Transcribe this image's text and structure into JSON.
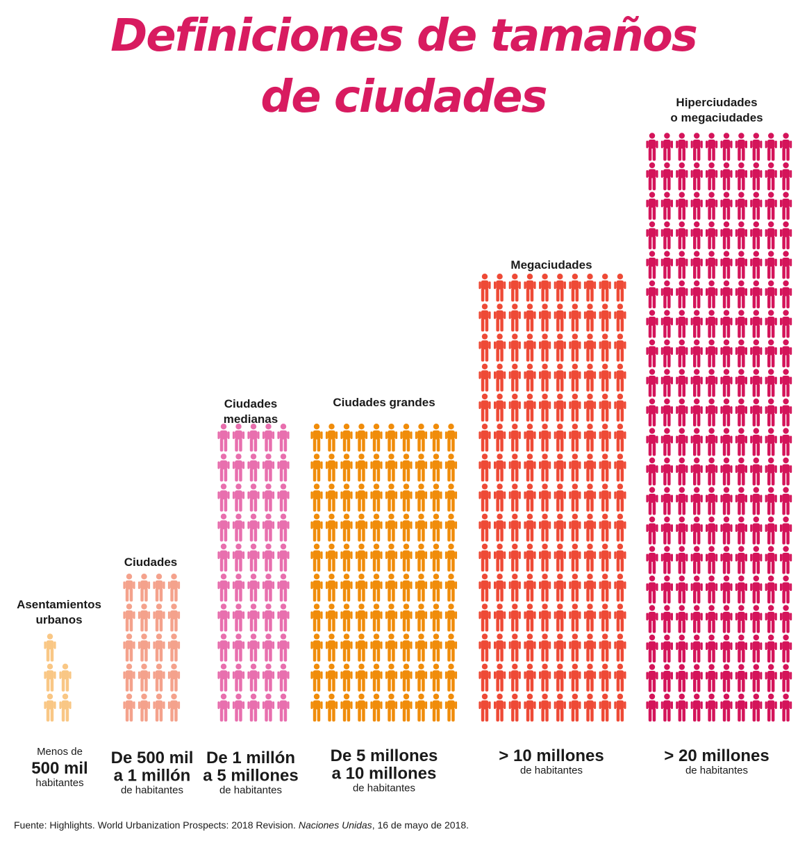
{
  "title": {
    "line1": "Definiciones de tamaños",
    "line2": "de ciudades"
  },
  "chart_data": {
    "type": "pictogram",
    "title": "Definiciones de tamaños de ciudades",
    "categories": [
      {
        "label": [
          "Asentamientos",
          "urbanos"
        ],
        "range": [
          "Menos de",
          "500 mil",
          "habitantes"
        ],
        "icons": 5,
        "color": "#f9c785"
      },
      {
        "label": [
          "Ciudades"
        ],
        "range": [
          "De 500 mil",
          "a 1 millón",
          "de habitantes"
        ],
        "icons": 20,
        "color": "#f4a28c"
      },
      {
        "label": [
          "Ciudades",
          "medianas"
        ],
        "range": [
          "De 1 millón",
          "a 5 millones",
          "de habitantes"
        ],
        "icons": 50,
        "color": "#e86fae"
      },
      {
        "label": [
          "Ciudades grandes"
        ],
        "range": [
          "De 5 millones",
          "a 10 millones",
          "de habitantes"
        ],
        "icons": 100,
        "color": "#f08c0a"
      },
      {
        "label": [
          "Megaciudades"
        ],
        "range": [
          "> 10 millones",
          "de habitantes"
        ],
        "icons": 150,
        "color": "#ee4a36"
      },
      {
        "label": [
          "Hiperciudades",
          "o megaciudades"
        ],
        "range": [
          "> 20 millones",
          "de habitantes"
        ],
        "icons": 200,
        "color": "#d4145a"
      }
    ]
  },
  "source": {
    "prefix": "Fuente: Highlights. World Urbanization Prospects: 2018 Revision. ",
    "italic": "Naciones Unidas",
    "suffix": ", 16 de mayo de 2018."
  }
}
